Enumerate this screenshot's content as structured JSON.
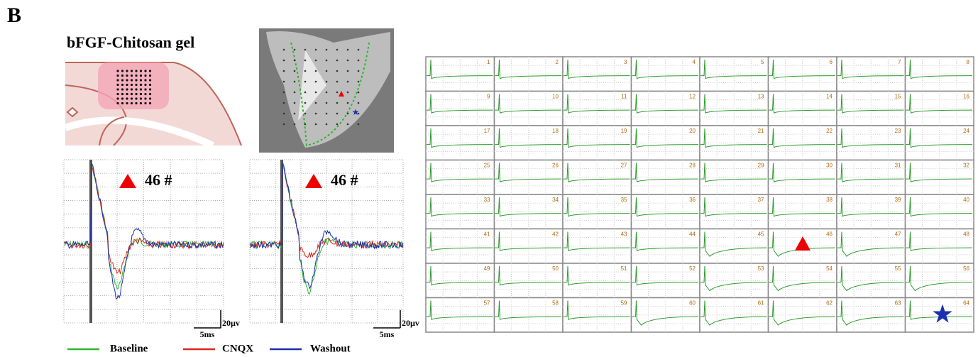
{
  "panel_label": "B",
  "title": "bFGF-Chitosan gel",
  "traces": [
    {
      "label": "46 #",
      "scale_y": "20µv",
      "scale_x": "5ms"
    },
    {
      "label": "46 #",
      "scale_y": "20µv",
      "scale_x": "5ms"
    }
  ],
  "legend": [
    {
      "name": "Baseline",
      "color": "#2db82d"
    },
    {
      "name": "CNQX",
      "color": "#d9291c"
    },
    {
      "name": "Washout",
      "color": "#1a2fb0"
    }
  ],
  "grid": {
    "channels": [
      1,
      2,
      3,
      4,
      5,
      6,
      7,
      8,
      9,
      10,
      11,
      12,
      13,
      14,
      15,
      16,
      17,
      18,
      19,
      20,
      21,
      22,
      23,
      24,
      25,
      26,
      27,
      28,
      29,
      30,
      31,
      32,
      33,
      34,
      35,
      36,
      37,
      38,
      39,
      40,
      41,
      42,
      43,
      44,
      45,
      46,
      47,
      48,
      49,
      50,
      51,
      52,
      53,
      54,
      55,
      56,
      57,
      58,
      59,
      60,
      61,
      62,
      63,
      64
    ]
  }
}
